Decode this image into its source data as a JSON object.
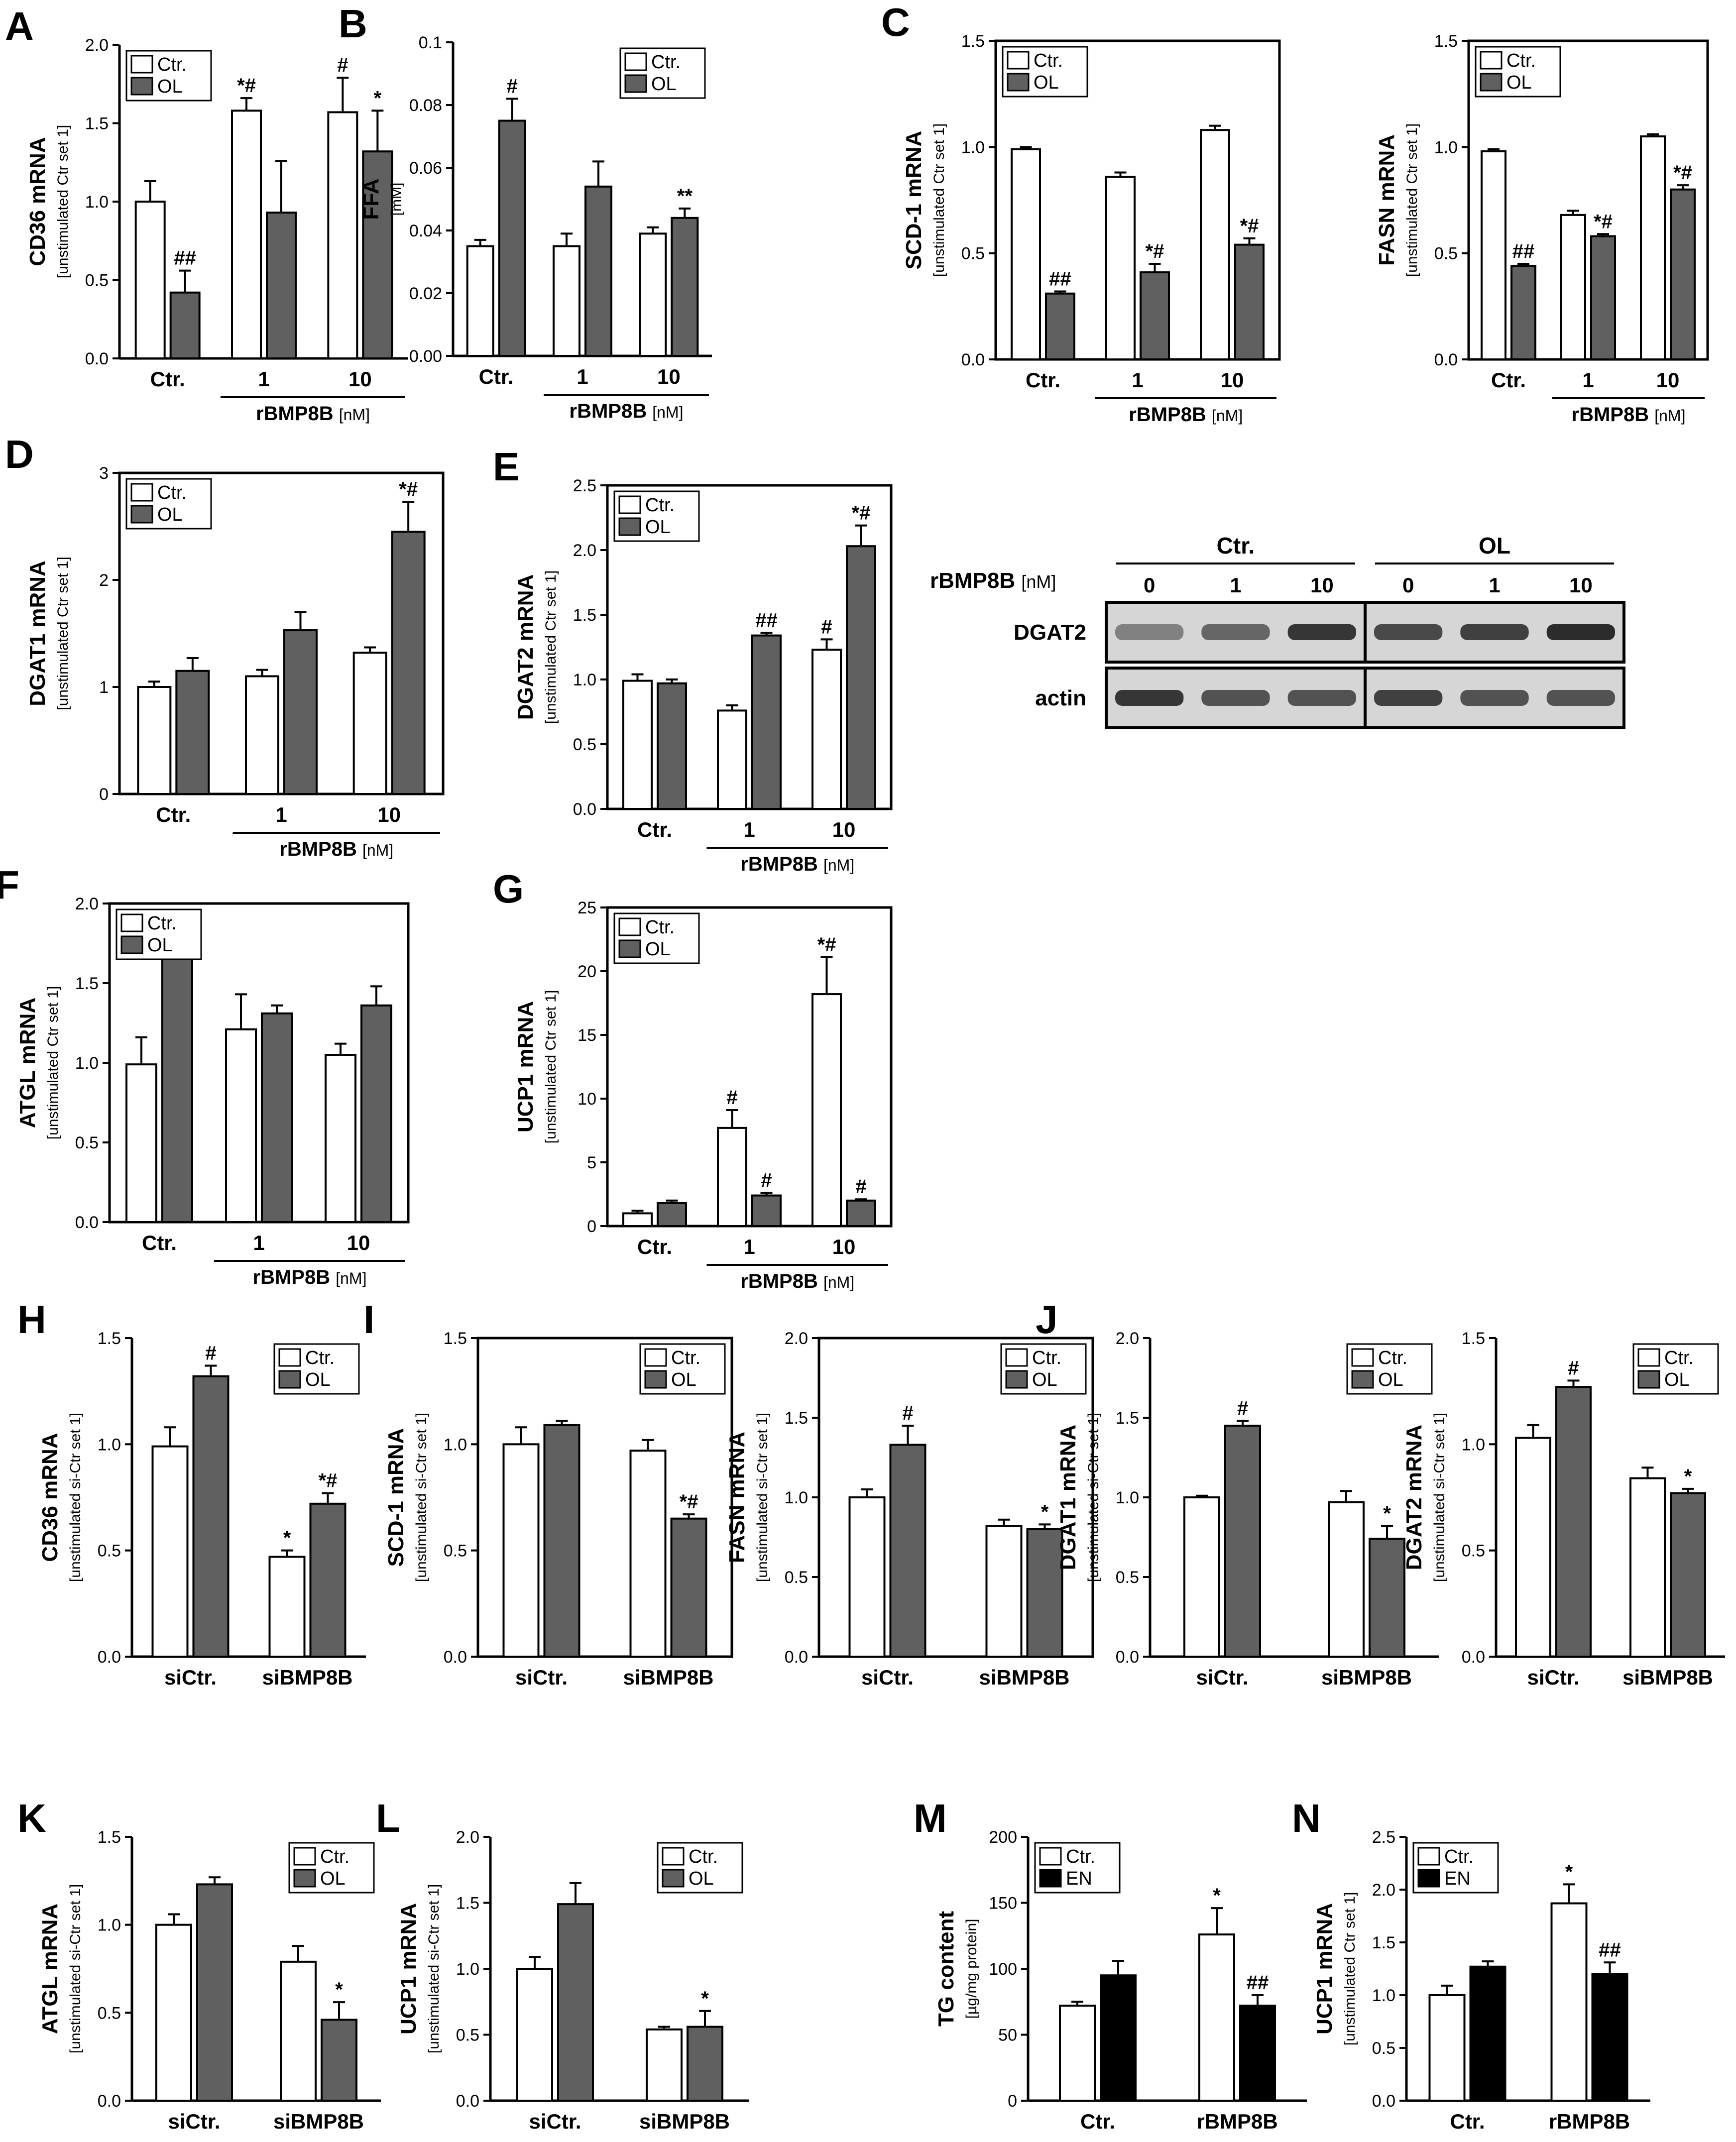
{
  "chart_data": [
    {
      "panel": "A",
      "type": "bar",
      "ylabel": "CD36 mRNA",
      "ysub": "[unstimulated Ctr set 1]",
      "ylim": [
        0,
        2.0
      ],
      "ticks": [
        "0.0",
        "0.5",
        "1.0",
        "1.5",
        "2.0"
      ],
      "categories": [
        "Ctr.",
        "1",
        "10"
      ],
      "group_label": "rBMP8B",
      "group_unit": "[nM]",
      "legend": [
        "Ctr.",
        "OL"
      ],
      "palette": "grey",
      "series": [
        {
          "name": "Ctr.",
          "values": [
            1.0,
            1.58,
            1.57
          ],
          "errors": [
            0.13,
            0.08,
            0.22
          ],
          "marks": [
            "",
            "*#",
            "#"
          ]
        },
        {
          "name": "OL",
          "values": [
            0.42,
            0.93,
            1.32
          ],
          "errors": [
            0.14,
            0.33,
            0.26
          ],
          "marks": [
            "##",
            "",
            "*"
          ]
        }
      ]
    },
    {
      "panel": "B",
      "type": "bar",
      "ylabel": "FFA",
      "ysub": "[mM]",
      "ylim": [
        0,
        0.1
      ],
      "ticks": [
        "0.00",
        "0.02",
        "0.04",
        "0.06",
        "0.08",
        "0.1"
      ],
      "categories": [
        "Ctr.",
        "1",
        "10"
      ],
      "group_label": "rBMP8B",
      "group_unit": "[nM]",
      "legend": [
        "Ctr.",
        "OL"
      ],
      "palette": "grey",
      "series": [
        {
          "name": "Ctr.",
          "values": [
            0.035,
            0.035,
            0.039
          ],
          "errors": [
            0.002,
            0.004,
            0.002
          ],
          "marks": [
            "",
            "",
            ""
          ]
        },
        {
          "name": "OL",
          "values": [
            0.075,
            0.054,
            0.044
          ],
          "errors": [
            0.007,
            0.008,
            0.003
          ],
          "marks": [
            "#",
            "",
            "**"
          ]
        }
      ]
    },
    {
      "panel": "C",
      "type": "bar",
      "ylabel": "SCD-1 mRNA",
      "ysub": "[unstimulated Ctr set 1]",
      "ylim": [
        0,
        1.5
      ],
      "ticks": [
        "0.0",
        "0.5",
        "1.0",
        "1.5"
      ],
      "categories": [
        "Ctr.",
        "1",
        "10"
      ],
      "group_label": "rBMP8B",
      "group_unit": "[nM]",
      "legend": [
        "Ctr.",
        "OL"
      ],
      "palette": "grey",
      "series": [
        {
          "name": "Ctr.",
          "values": [
            0.99,
            0.86,
            1.08
          ],
          "errors": [
            0.01,
            0.02,
            0.02
          ],
          "marks": [
            "",
            "",
            ""
          ]
        },
        {
          "name": "OL",
          "values": [
            0.31,
            0.41,
            0.54
          ],
          "errors": [
            0.01,
            0.04,
            0.03
          ],
          "marks": [
            "##",
            "*#",
            "*#"
          ]
        }
      ]
    },
    {
      "panel": "",
      "type": "bar",
      "ylabel": "FASN mRNA",
      "ysub": "[unstimulated Ctr set 1]",
      "ylim": [
        0,
        1.5
      ],
      "ticks": [
        "0.0",
        "0.5",
        "1.0",
        "1.5"
      ],
      "categories": [
        "Ctr.",
        "1",
        "10"
      ],
      "group_label": "rBMP8B",
      "group_unit": "[nM]",
      "legend": [
        "Ctr.",
        "OL"
      ],
      "palette": "grey",
      "series": [
        {
          "name": "Ctr.",
          "values": [
            0.98,
            0.68,
            1.05
          ],
          "errors": [
            0.01,
            0.02,
            0.01
          ],
          "marks": [
            "",
            "",
            ""
          ]
        },
        {
          "name": "OL",
          "values": [
            0.44,
            0.58,
            0.8
          ],
          "errors": [
            0.01,
            0.01,
            0.02
          ],
          "marks": [
            "##",
            "*#",
            "*#"
          ]
        }
      ]
    },
    {
      "panel": "D",
      "type": "bar",
      "ylabel": "DGAT1 mRNA",
      "ysub": "[unstimulated Ctr set 1]",
      "ylim": [
        0,
        3
      ],
      "ticks": [
        "0",
        "1",
        "2",
        "3"
      ],
      "categories": [
        "Ctr.",
        "1",
        "10"
      ],
      "group_label": "rBMP8B",
      "group_unit": "[nM]",
      "legend": [
        "Ctr.",
        "OL"
      ],
      "palette": "grey",
      "series": [
        {
          "name": "Ctr.",
          "values": [
            1.0,
            1.1,
            1.32
          ],
          "errors": [
            0.05,
            0.06,
            0.05
          ],
          "marks": [
            "",
            "",
            ""
          ]
        },
        {
          "name": "OL",
          "values": [
            1.15,
            1.53,
            2.45
          ],
          "errors": [
            0.12,
            0.17,
            0.28
          ],
          "marks": [
            "",
            "",
            "*#"
          ]
        }
      ]
    },
    {
      "panel": "E",
      "type": "bar",
      "ylabel": "DGAT2 mRNA",
      "ysub": "[unstimulated Ctr set 1]",
      "ylim": [
        0,
        2.5
      ],
      "ticks": [
        "0.0",
        "0.5",
        "1.0",
        "1.5",
        "2.0",
        "2.5"
      ],
      "categories": [
        "Ctr.",
        "1",
        "10"
      ],
      "group_label": "rBMP8B",
      "group_unit": "[nM]",
      "legend": [
        "Ctr.",
        "OL"
      ],
      "palette": "grey",
      "series": [
        {
          "name": "Ctr.",
          "values": [
            0.99,
            0.76,
            1.23
          ],
          "errors": [
            0.05,
            0.04,
            0.08
          ],
          "marks": [
            "",
            "",
            "#"
          ]
        },
        {
          "name": "OL",
          "values": [
            0.97,
            1.34,
            2.03
          ],
          "errors": [
            0.03,
            0.02,
            0.16
          ],
          "marks": [
            "",
            "##",
            "*#"
          ]
        }
      ]
    },
    {
      "panel": "F",
      "type": "bar",
      "ylabel": "ATGL mRNA",
      "ysub": "[unstimulated Ctr set 1]",
      "ylim": [
        0,
        2.0
      ],
      "ticks": [
        "0.0",
        "0.5",
        "1.0",
        "1.5",
        "2.0"
      ],
      "categories": [
        "Ctr.",
        "1",
        "10"
      ],
      "group_label": "rBMP8B",
      "group_unit": "[nM]",
      "legend": [
        "Ctr.",
        "OL"
      ],
      "palette": "grey",
      "series": [
        {
          "name": "Ctr.",
          "values": [
            0.99,
            1.21,
            1.05
          ],
          "errors": [
            0.17,
            0.22,
            0.07
          ],
          "marks": [
            "",
            "",
            ""
          ]
        },
        {
          "name": "OL",
          "values": [
            1.68,
            1.31,
            1.36
          ],
          "errors": [
            0.15,
            0.05,
            0.12
          ],
          "marks": [
            "",
            "",
            ""
          ]
        }
      ]
    },
    {
      "panel": "G",
      "type": "bar",
      "ylabel": "UCP1 mRNA",
      "ysub": "[unstimulated Ctr set 1]",
      "ylim": [
        0,
        25
      ],
      "ticks": [
        "0",
        "5",
        "10",
        "15",
        "20",
        "25"
      ],
      "categories": [
        "Ctr.",
        "1",
        "10"
      ],
      "group_label": "rBMP8B",
      "group_unit": "[nM]",
      "legend": [
        "Ctr.",
        "OL"
      ],
      "palette": "grey",
      "series": [
        {
          "name": "Ctr.",
          "values": [
            1.0,
            7.7,
            18.2
          ],
          "errors": [
            0.2,
            1.4,
            2.9
          ],
          "marks": [
            "",
            "#",
            "*#"
          ]
        },
        {
          "name": "OL",
          "values": [
            1.8,
            2.4,
            2.0
          ],
          "errors": [
            0.2,
            0.2,
            0.1
          ],
          "marks": [
            "",
            "#",
            "#"
          ]
        }
      ]
    },
    {
      "panel": "H",
      "type": "bar",
      "ylabel": "CD36 mRNA",
      "ysub": "[unstimulated si-Ctr set 1]",
      "ylim": [
        0,
        1.5
      ],
      "ticks": [
        "0.0",
        "0.5",
        "1.0",
        "1.5"
      ],
      "categories": [
        "siCtr.",
        "siBMP8B"
      ],
      "legend": [
        "Ctr.",
        "OL"
      ],
      "palette": "grey",
      "series": [
        {
          "name": "Ctr.",
          "values": [
            0.99,
            0.47
          ],
          "errors": [
            0.09,
            0.03
          ],
          "marks": [
            "",
            "*"
          ]
        },
        {
          "name": "OL",
          "values": [
            1.32,
            0.72
          ],
          "errors": [
            0.05,
            0.05
          ],
          "marks": [
            "#",
            "*#"
          ]
        }
      ]
    },
    {
      "panel": "I",
      "type": "bar",
      "ylabel": "SCD-1 mRNA",
      "ysub": "[unstimulated si-Ctr set 1]",
      "ylim": [
        0,
        1.5
      ],
      "ticks": [
        "0.0",
        "0.5",
        "1.0",
        "1.5"
      ],
      "categories": [
        "siCtr.",
        "siBMP8B"
      ],
      "legend": [
        "Ctr.",
        "OL"
      ],
      "palette": "grey",
      "series": [
        {
          "name": "Ctr.",
          "values": [
            1.0,
            0.97
          ],
          "errors": [
            0.08,
            0.05
          ],
          "marks": [
            "",
            ""
          ]
        },
        {
          "name": "OL",
          "values": [
            1.09,
            0.65
          ],
          "errors": [
            0.02,
            0.02
          ],
          "marks": [
            "",
            "*#"
          ]
        }
      ]
    },
    {
      "panel": "",
      "type": "bar",
      "ylabel": "FASN mRNA",
      "ysub": "[unstimulated si-Ctr set 1]",
      "ylim": [
        0,
        2.0
      ],
      "ticks": [
        "0.0",
        "0.5",
        "1.0",
        "1.5",
        "2.0"
      ],
      "categories": [
        "siCtr.",
        "siBMP8B"
      ],
      "legend": [
        "Ctr.",
        "OL"
      ],
      "palette": "grey",
      "series": [
        {
          "name": "Ctr.",
          "values": [
            1.0,
            0.82
          ],
          "errors": [
            0.05,
            0.04
          ],
          "marks": [
            "",
            ""
          ]
        },
        {
          "name": "OL",
          "values": [
            1.33,
            0.8
          ],
          "errors": [
            0.12,
            0.03
          ],
          "marks": [
            "#",
            "*"
          ]
        }
      ]
    },
    {
      "panel": "J",
      "type": "bar",
      "ylabel": "DGAT1 mRNA",
      "ysub": "[unstimulated si-Ctr set 1]",
      "ylim": [
        0,
        2.0
      ],
      "ticks": [
        "0.0",
        "0.5",
        "1.0",
        "1.5",
        "2.0"
      ],
      "categories": [
        "siCtr.",
        "siBMP8B"
      ],
      "legend": [
        "Ctr.",
        "OL"
      ],
      "palette": "grey",
      "series": [
        {
          "name": "Ctr.",
          "values": [
            1.0,
            0.97
          ],
          "errors": [
            0.01,
            0.07
          ],
          "marks": [
            "",
            ""
          ]
        },
        {
          "name": "OL",
          "values": [
            1.45,
            0.74
          ],
          "errors": [
            0.03,
            0.08
          ],
          "marks": [
            "#",
            "*"
          ]
        }
      ]
    },
    {
      "panel": "",
      "type": "bar",
      "ylabel": "DGAT2 mRNA",
      "ysub": "[unstimulated si-Ctr set 1]",
      "ylim": [
        0,
        1.5
      ],
      "ticks": [
        "0.0",
        "0.5",
        "1.0",
        "1.5"
      ],
      "categories": [
        "siCtr.",
        "siBMP8B"
      ],
      "legend": [
        "Ctr.",
        "OL"
      ],
      "palette": "grey",
      "series": [
        {
          "name": "Ctr.",
          "values": [
            1.03,
            0.84
          ],
          "errors": [
            0.06,
            0.05
          ],
          "marks": [
            "",
            ""
          ]
        },
        {
          "name": "OL",
          "values": [
            1.27,
            0.77
          ],
          "errors": [
            0.03,
            0.02
          ],
          "marks": [
            "#",
            "*"
          ]
        }
      ]
    },
    {
      "panel": "K",
      "type": "bar",
      "ylabel": "ATGL mRNA",
      "ysub": "[unstimulated si-Ctr set 1]",
      "ylim": [
        0,
        1.5
      ],
      "ticks": [
        "0.0",
        "0.5",
        "1.0",
        "1.5"
      ],
      "categories": [
        "siCtr.",
        "siBMP8B"
      ],
      "legend": [
        "Ctr.",
        "OL"
      ],
      "palette": "grey",
      "series": [
        {
          "name": "Ctr.",
          "values": [
            1.0,
            0.79
          ],
          "errors": [
            0.06,
            0.09
          ],
          "marks": [
            "",
            ""
          ]
        },
        {
          "name": "OL",
          "values": [
            1.23,
            0.46
          ],
          "errors": [
            0.04,
            0.1
          ],
          "marks": [
            "",
            "*"
          ]
        }
      ]
    },
    {
      "panel": "L",
      "type": "bar",
      "ylabel": "UCP1 mRNA",
      "ysub": "[unstimulated si-Ctr set 1]",
      "ylim": [
        0,
        2.0
      ],
      "ticks": [
        "0.0",
        "0.5",
        "1.0",
        "1.5",
        "2.0"
      ],
      "categories": [
        "siCtr.",
        "siBMP8B"
      ],
      "legend": [
        "Ctr.",
        "OL"
      ],
      "palette": "grey",
      "series": [
        {
          "name": "Ctr.",
          "values": [
            1.0,
            0.54
          ],
          "errors": [
            0.09,
            0.02
          ],
          "marks": [
            "",
            ""
          ]
        },
        {
          "name": "OL",
          "values": [
            1.49,
            0.56
          ],
          "errors": [
            0.16,
            0.12
          ],
          "marks": [
            "",
            "*"
          ]
        }
      ]
    },
    {
      "panel": "M",
      "type": "bar",
      "ylabel": "TG content",
      "ysub": "[µg/mg protein]",
      "ylim": [
        0,
        200
      ],
      "ticks": [
        "0",
        "50",
        "100",
        "150",
        "200"
      ],
      "categories": [
        "Ctr.",
        "rBMP8B"
      ],
      "legend": [
        "Ctr.",
        "EN"
      ],
      "palette": "black",
      "series": [
        {
          "name": "Ctr.",
          "values": [
            72,
            126
          ],
          "errors": [
            3,
            20
          ],
          "marks": [
            "",
            "*"
          ]
        },
        {
          "name": "EN",
          "values": [
            95,
            72
          ],
          "errors": [
            11,
            8
          ],
          "marks": [
            "",
            "##"
          ]
        }
      ]
    },
    {
      "panel": "N",
      "type": "bar",
      "ylabel": "UCP1 mRNA",
      "ysub": "[unstimulated Ctr set 1]",
      "ylim": [
        0,
        2.5
      ],
      "ticks": [
        "0.0",
        "0.5",
        "1.0",
        "1.5",
        "2.0",
        "2.5"
      ],
      "categories": [
        "Ctr.",
        "rBMP8B"
      ],
      "legend": [
        "Ctr.",
        "EN"
      ],
      "palette": "black",
      "series": [
        {
          "name": "Ctr.",
          "values": [
            1.0,
            1.87
          ],
          "errors": [
            0.09,
            0.18
          ],
          "marks": [
            "",
            "*"
          ]
        },
        {
          "name": "EN",
          "values": [
            1.27,
            1.2
          ],
          "errors": [
            0.05,
            0.11
          ],
          "marks": [
            "",
            "##"
          ]
        }
      ]
    }
  ],
  "blot": {
    "header_label": "rBMP8B",
    "header_unit": "[nM]",
    "groups": [
      "Ctr.",
      "OL"
    ],
    "doses": [
      "0",
      "1",
      "10",
      "0",
      "1",
      "10"
    ],
    "rows": [
      "DGAT2",
      "actin"
    ],
    "dgat2_intensity": [
      0.45,
      0.6,
      0.85,
      0.75,
      0.8,
      0.9
    ],
    "actin_intensity": [
      0.85,
      0.7,
      0.7,
      0.8,
      0.7,
      0.7
    ],
    "colors": {
      "band": "#1a1a1a",
      "background": "#d6d6d6"
    }
  },
  "colors": {
    "ctr": "#ffffff",
    "treated_grey": "#606060",
    "treated_black": "#000000",
    "axis": "#000000"
  }
}
